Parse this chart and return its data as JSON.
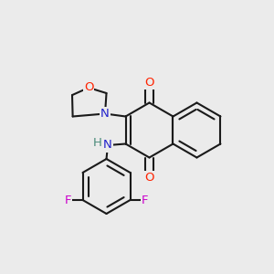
{
  "bg_color": "#ebebeb",
  "bond_color": "#1a1a1a",
  "bond_width": 1.5,
  "atom_colors": {
    "O": "#ff2200",
    "N": "#2222cc",
    "F": "#cc00cc",
    "H": "#4a8a7a"
  },
  "font_size": 9.5,
  "figsize": [
    3.0,
    3.0
  ],
  "dpi": 100,
  "xlim": [
    0.0,
    1.0
  ],
  "ylim": [
    0.0,
    1.0
  ]
}
